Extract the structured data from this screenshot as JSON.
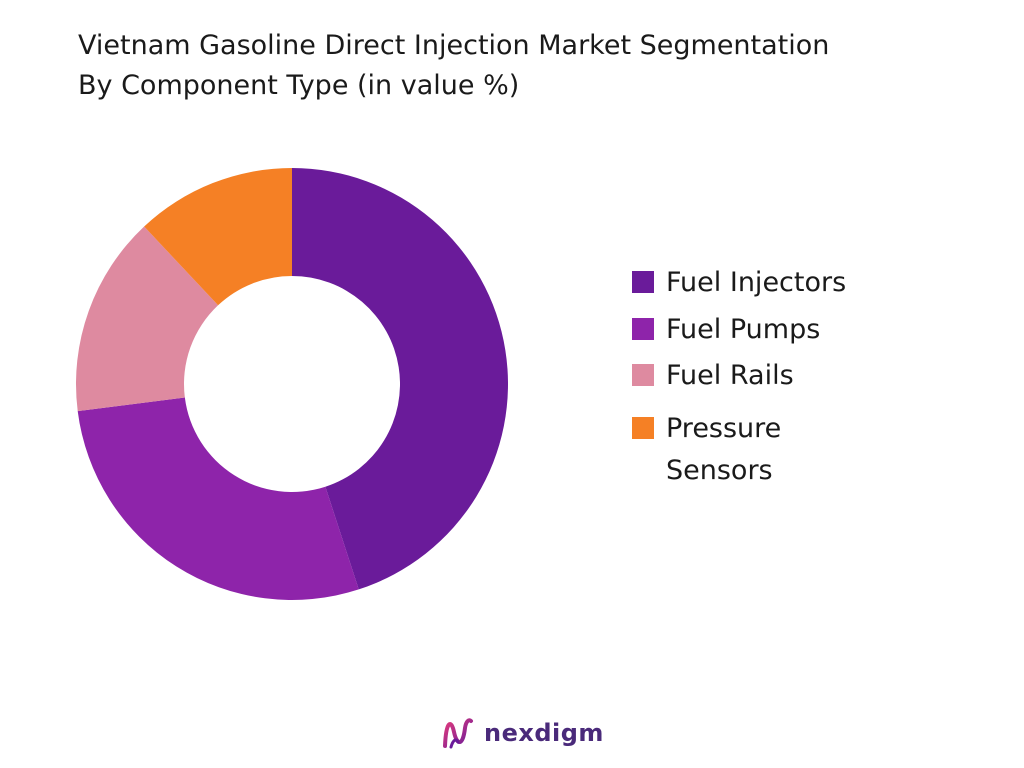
{
  "chart_data": {
    "type": "pie",
    "title": "Vietnam Gasoline Direct Injection Market Segmentation",
    "subtitle": "By Component Type (in value %)",
    "categories": [
      "Fuel Injectors",
      "Fuel Pumps",
      "Fuel Rails",
      "Pressure Sensors"
    ],
    "values": [
      45,
      28,
      15,
      12
    ],
    "colors": [
      "#6a1b9a",
      "#8e24aa",
      "#de8aa0",
      "#f58025"
    ],
    "donut": true,
    "legend": "right"
  },
  "brand": {
    "name": "nexdigm",
    "icon": "nexdigm-logo-icon"
  }
}
